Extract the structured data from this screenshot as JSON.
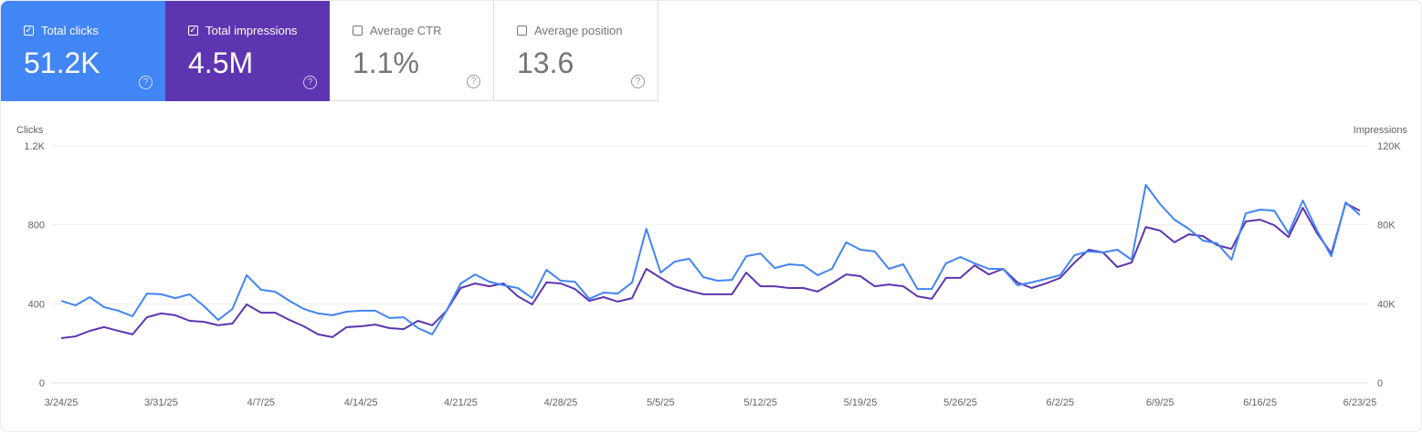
{
  "metrics": [
    {
      "label": "Total clicks",
      "value": "51.2K",
      "checked": true,
      "color": "#4285f4"
    },
    {
      "label": "Total impressions",
      "value": "4.5M",
      "checked": true,
      "color": "#5e35b1"
    },
    {
      "label": "Average CTR",
      "value": "1.1%",
      "checked": false
    },
    {
      "label": "Average position",
      "value": "13.6",
      "checked": false
    }
  ],
  "chart_data": {
    "type": "line",
    "ylabel_left": "Clicks",
    "ylabel_right": "Impressions",
    "ylim_left": [
      0,
      1200
    ],
    "ylim_right": [
      0,
      120000
    ],
    "yticks_left": [
      "0",
      "400",
      "800",
      "1.2K"
    ],
    "yticks_right": [
      "0",
      "40K",
      "80K",
      "120K"
    ],
    "xticks": [
      "3/24/25",
      "3/31/25",
      "4/7/25",
      "4/14/25",
      "4/21/25",
      "4/28/25",
      "5/5/25",
      "5/12/25",
      "5/19/25",
      "5/26/25",
      "6/2/25",
      "6/9/25",
      "6/16/25",
      "6/23/25"
    ],
    "grid": true,
    "x": [
      "3/24/25",
      "3/25/25",
      "3/26/25",
      "3/27/25",
      "3/28/25",
      "3/29/25",
      "3/30/25",
      "3/31/25",
      "4/1/25",
      "4/2/25",
      "4/3/25",
      "4/4/25",
      "4/5/25",
      "4/6/25",
      "4/7/25",
      "4/8/25",
      "4/9/25",
      "4/10/25",
      "4/11/25",
      "4/12/25",
      "4/13/25",
      "4/14/25",
      "4/15/25",
      "4/16/25",
      "4/17/25",
      "4/18/25",
      "4/19/25",
      "4/20/25",
      "4/21/25",
      "4/22/25",
      "4/23/25",
      "4/24/25",
      "4/25/25",
      "4/26/25",
      "4/27/25",
      "4/28/25",
      "4/29/25",
      "4/30/25",
      "5/1/25",
      "5/2/25",
      "5/3/25",
      "5/4/25",
      "5/5/25",
      "5/6/25",
      "5/7/25",
      "5/8/25",
      "5/9/25",
      "5/10/25",
      "5/11/25",
      "5/12/25",
      "5/13/25",
      "5/14/25",
      "5/15/25",
      "5/16/25",
      "5/17/25",
      "5/18/25",
      "5/19/25",
      "5/20/25",
      "5/21/25",
      "5/22/25",
      "5/23/25",
      "5/24/25",
      "5/25/25",
      "5/26/25",
      "5/27/25",
      "5/28/25",
      "5/29/25",
      "5/30/25",
      "5/31/25",
      "6/1/25",
      "6/2/25",
      "6/3/25",
      "6/4/25",
      "6/5/25",
      "6/6/25",
      "6/7/25",
      "6/8/25",
      "6/9/25",
      "6/10/25",
      "6/11/25",
      "6/12/25",
      "6/13/25",
      "6/14/25",
      "6/15/25",
      "6/16/25",
      "6/17/25",
      "6/18/25",
      "6/19/25",
      "6/20/25",
      "6/21/25",
      "6/22/25",
      "6/23/25"
    ],
    "series": [
      {
        "name": "Clicks",
        "axis": "left",
        "color": "#4285f4",
        "values": [
          415,
          392,
          434,
          383,
          365,
          337,
          452,
          448,
          429,
          448,
          388,
          318,
          374,
          545,
          471,
          461,
          415,
          374,
          351,
          342,
          360,
          365,
          365,
          328,
          332,
          277,
          245,
          365,
          503,
          549,
          512,
          494,
          480,
          429,
          572,
          517,
          512,
          425,
          457,
          452,
          508,
          780,
          558,
          614,
          628,
          535,
          517,
          521,
          641,
          655,
          581,
          600,
          595,
          545,
          577,
          711,
          674,
          665,
          577,
          600,
          475,
          475,
          605,
          637,
          605,
          577,
          577,
          494,
          508,
          526,
          545,
          646,
          665,
          660,
          674,
          623,
          1002,
          905,
          826,
          780,
          720,
          706,
          623,
          858,
          877,
          872,
          757,
          923,
          771,
          641,
          914,
          849
        ]
      },
      {
        "name": "Impressions",
        "axis": "right",
        "color": "#5e35b1",
        "values": [
          22600,
          23500,
          26300,
          28200,
          26300,
          24500,
          33200,
          35100,
          34200,
          31400,
          30900,
          29100,
          30000,
          39700,
          35500,
          35500,
          31800,
          28600,
          24500,
          23100,
          28200,
          28600,
          29500,
          27700,
          27200,
          31400,
          29100,
          36500,
          48000,
          50300,
          48900,
          50300,
          43800,
          39700,
          50800,
          50300,
          47500,
          41500,
          43400,
          41100,
          42900,
          57700,
          53100,
          48900,
          46600,
          44800,
          44800,
          44800,
          55800,
          48900,
          48900,
          48000,
          48000,
          46200,
          50300,
          54900,
          54000,
          48900,
          49800,
          48900,
          43800,
          42500,
          53100,
          53100,
          59500,
          54900,
          57700,
          50800,
          48000,
          50300,
          53100,
          60900,
          67400,
          66000,
          58600,
          60900,
          78900,
          77100,
          71100,
          75200,
          74300,
          69700,
          67800,
          81700,
          82600,
          79800,
          73800,
          88600,
          75700,
          65500,
          90900,
          87200
        ]
      }
    ]
  }
}
